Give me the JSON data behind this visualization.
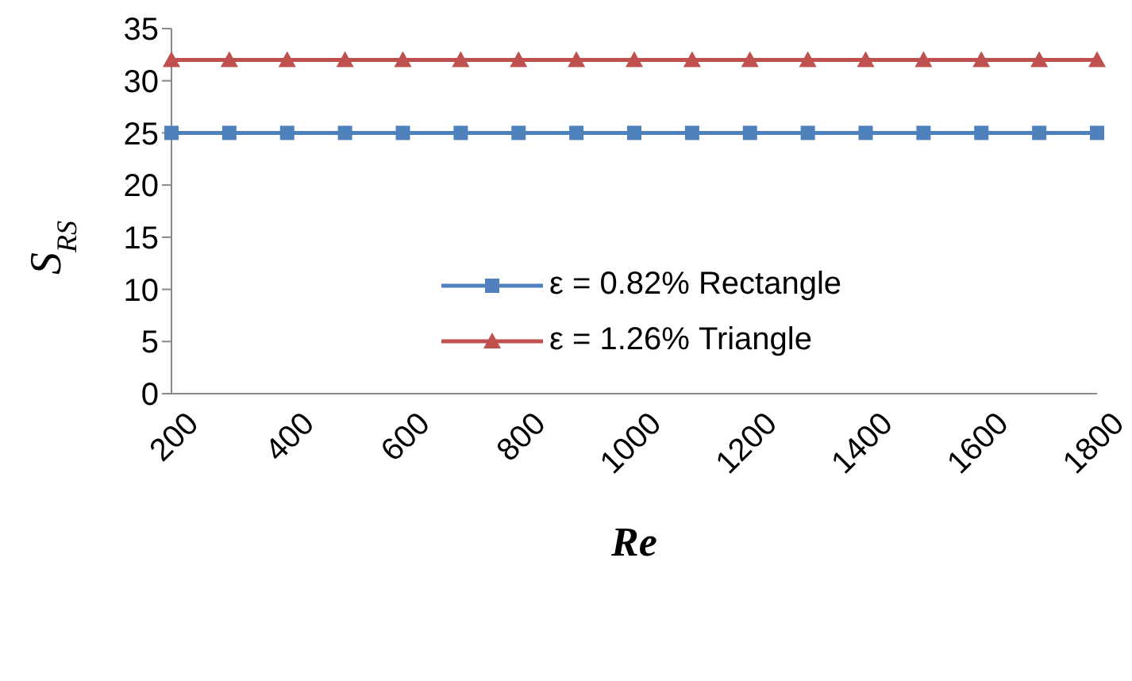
{
  "chart_data": {
    "type": "line",
    "xlabel": "Re",
    "ylabel": "S$_{RS}$",
    "categories": [
      "200",
      null,
      "400",
      null,
      "600",
      null,
      "800",
      null,
      "1000",
      null,
      "1200",
      null,
      "1400",
      null,
      "1600",
      null,
      "1800"
    ],
    "series": [
      {
        "name": "ε = 0.82% Rectangle",
        "color": "#4f81bd",
        "marker": "square",
        "values": [
          25,
          25,
          25,
          25,
          25,
          25,
          25,
          25,
          25,
          25,
          25,
          25,
          25,
          25,
          25,
          25,
          25
        ]
      },
      {
        "name": "ε = 1.26% Triangle",
        "color": "#c0504d",
        "marker": "triangle",
        "values": [
          32,
          32,
          32,
          32,
          32,
          32,
          32,
          32,
          32,
          32,
          32,
          32,
          32,
          32,
          32,
          32,
          32
        ]
      }
    ],
    "ylim": [
      0,
      35
    ],
    "yticks": [
      0,
      5,
      10,
      15,
      20,
      25,
      30,
      35
    ],
    "grid": false,
    "legend": "center"
  }
}
